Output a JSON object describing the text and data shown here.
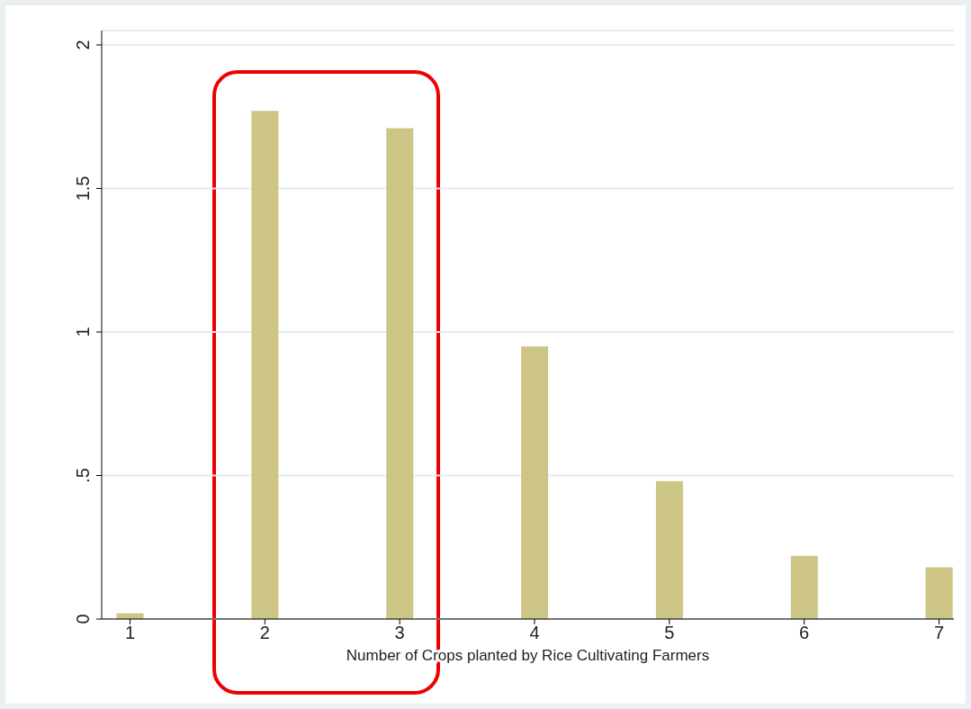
{
  "chart_data": {
    "type": "bar",
    "xlabel": "Number of Crops planted by Rice Cultivating Farmers",
    "x": [
      1,
      2,
      3,
      4,
      5,
      6,
      7
    ],
    "values": [
      0.02,
      1.77,
      1.71,
      0.95,
      0.48,
      0.22,
      0.18
    ],
    "color": "#cdc586",
    "xlim": [
      0.79,
      7.11
    ],
    "xticks": [
      1,
      2,
      3,
      4,
      5,
      6,
      7
    ],
    "ylim": [
      0,
      2.05
    ],
    "yticks": [
      0,
      {
        "value": 0.5,
        "label": ".5"
      },
      1,
      1.5,
      2
    ],
    "grid": "y"
  }
}
